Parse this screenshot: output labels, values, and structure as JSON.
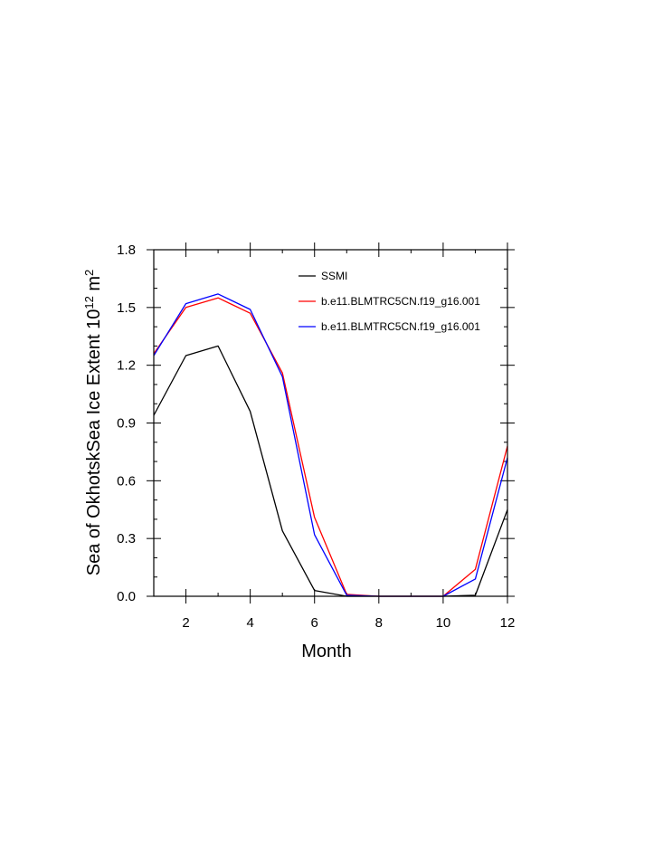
{
  "chart_data": {
    "type": "line",
    "title": "",
    "xlabel": "Month",
    "ylabel": "Sea of OkhotskSea Ice Extent 10",
    "ylabel_exponent": "12",
    "ylabel_unit": " m",
    "ylabel_unit_exponent": "2",
    "xlim": [
      1,
      12
    ],
    "ylim": [
      0,
      1.8
    ],
    "xticks": [
      2,
      4,
      6,
      8,
      10,
      12
    ],
    "yticks": [
      0.0,
      0.3,
      0.6,
      0.9,
      1.2,
      1.5,
      1.8
    ],
    "ytick_labels": [
      "0.0",
      "0.3",
      "0.6",
      "0.9",
      "1.2",
      "1.5",
      "1.8"
    ],
    "xtick_labels": [
      "2",
      "4",
      "6",
      "8",
      "10",
      "12"
    ],
    "legend_position": "top-right",
    "x": [
      1,
      2,
      3,
      4,
      5,
      6,
      7,
      8,
      9,
      10,
      11,
      12
    ],
    "series": [
      {
        "name": "SSMI",
        "color": "#000000",
        "values": [
          0.94,
          1.25,
          1.3,
          0.96,
          0.34,
          0.03,
          0.0,
          0.0,
          0.0,
          0.0,
          0.005,
          0.45
        ]
      },
      {
        "name": "b.e11.BLMTRC5CN.f19_g16.001",
        "color": "#ff0000",
        "values": [
          1.26,
          1.5,
          1.55,
          1.47,
          1.16,
          0.41,
          0.01,
          0.0,
          0.0,
          0.0,
          0.14,
          0.78
        ]
      },
      {
        "name": "b.e11.BLMTRC5CN.f19_g16.001",
        "color": "#0000ff",
        "values": [
          1.25,
          1.52,
          1.57,
          1.49,
          1.14,
          0.32,
          0.005,
          0.0,
          0.0,
          0.0,
          0.09,
          0.72
        ]
      }
    ]
  }
}
